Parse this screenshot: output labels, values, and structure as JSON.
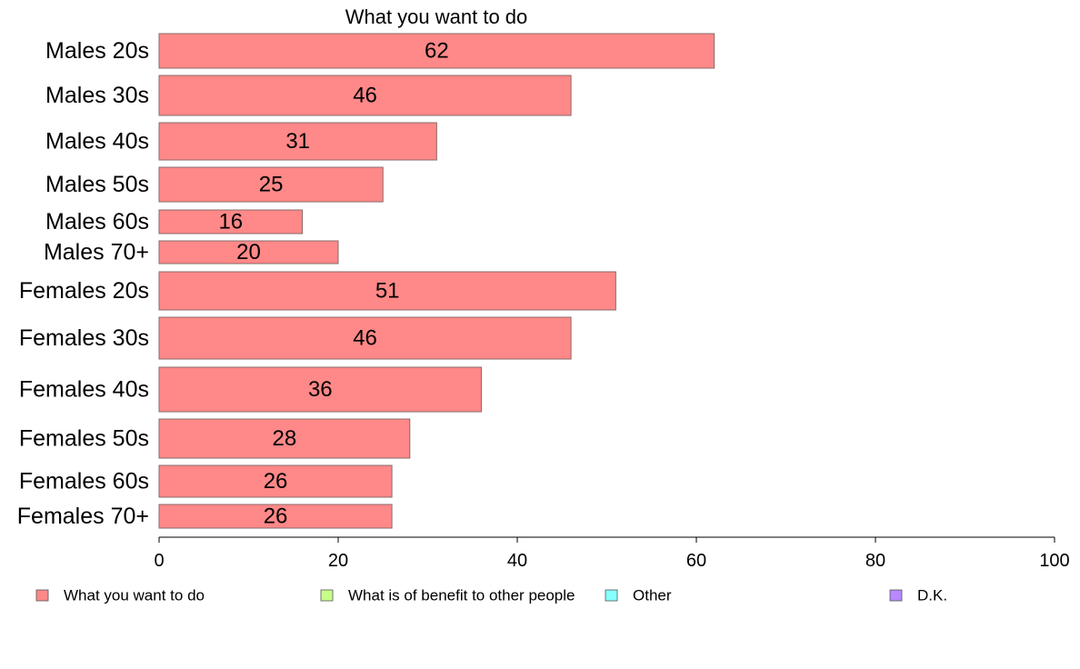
{
  "chart_data": {
    "type": "bar",
    "orientation": "horizontal",
    "title": "What you want to do",
    "categories": [
      "Males 20s",
      "Males 30s",
      "Males 40s",
      "Males 50s",
      "Males 60s",
      "Males 70+",
      "Females 20s",
      "Females 30s",
      "Females 40s",
      "Females 50s",
      "Females 60s",
      "Females 70+"
    ],
    "series": [
      {
        "name": "What you want to do",
        "color": "#ff8888",
        "values": [
          62,
          46,
          31,
          25,
          16,
          20,
          51,
          46,
          36,
          28,
          26,
          26
        ],
        "labels": [
          "62",
          "46",
          "31",
          "25",
          "16",
          "20",
          "51",
          "46",
          "36",
          "28",
          "26",
          "26"
        ]
      }
    ],
    "xlim": [
      0,
      100
    ],
    "xticks": [
      "0",
      "20",
      "40",
      "60",
      "80",
      "100"
    ],
    "grid": false,
    "legend_position": "bottom",
    "legend": [
      {
        "label": "What you want to do",
        "color": "#ff8888"
      },
      {
        "label": "What is of benefit to other people",
        "color": "#c8ff88"
      },
      {
        "label": "Other",
        "color": "#88ffff"
      },
      {
        "label": "D.K.",
        "color": "#b888ff"
      }
    ]
  }
}
